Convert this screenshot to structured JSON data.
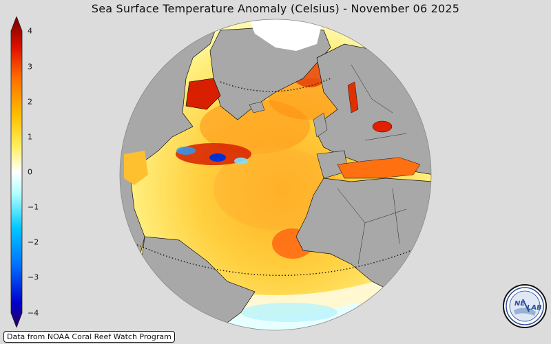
{
  "title": "Sea Surface Temperature Anomaly (Celsius) - November 06 2025",
  "colorbar": {
    "ticks": [
      {
        "value": "4"
      },
      {
        "value": "3"
      },
      {
        "value": "2"
      },
      {
        "value": "1"
      },
      {
        "value": "0"
      },
      {
        "value": "−1"
      },
      {
        "value": "−2"
      },
      {
        "value": "−3"
      },
      {
        "value": "−4"
      }
    ],
    "colors": [
      "#2a0060",
      "#0000cc",
      "#0070ff",
      "#00c8ff",
      "#b0ffff",
      "#ffffff",
      "#fff060",
      "#ffc000",
      "#ff7000",
      "#e01000",
      "#700000"
    ]
  },
  "credit": "Data from NOAA Coral Reef Watch Program",
  "logo": {
    "text_left": "NE",
    "text_right": "LAB"
  },
  "colors": {
    "background": "#dcdcdc",
    "land": "#a8a8a8",
    "ocean_warm": "#ffd040",
    "ocean_hot": "#e03000",
    "ocean_cool": "#80e8ff"
  }
}
